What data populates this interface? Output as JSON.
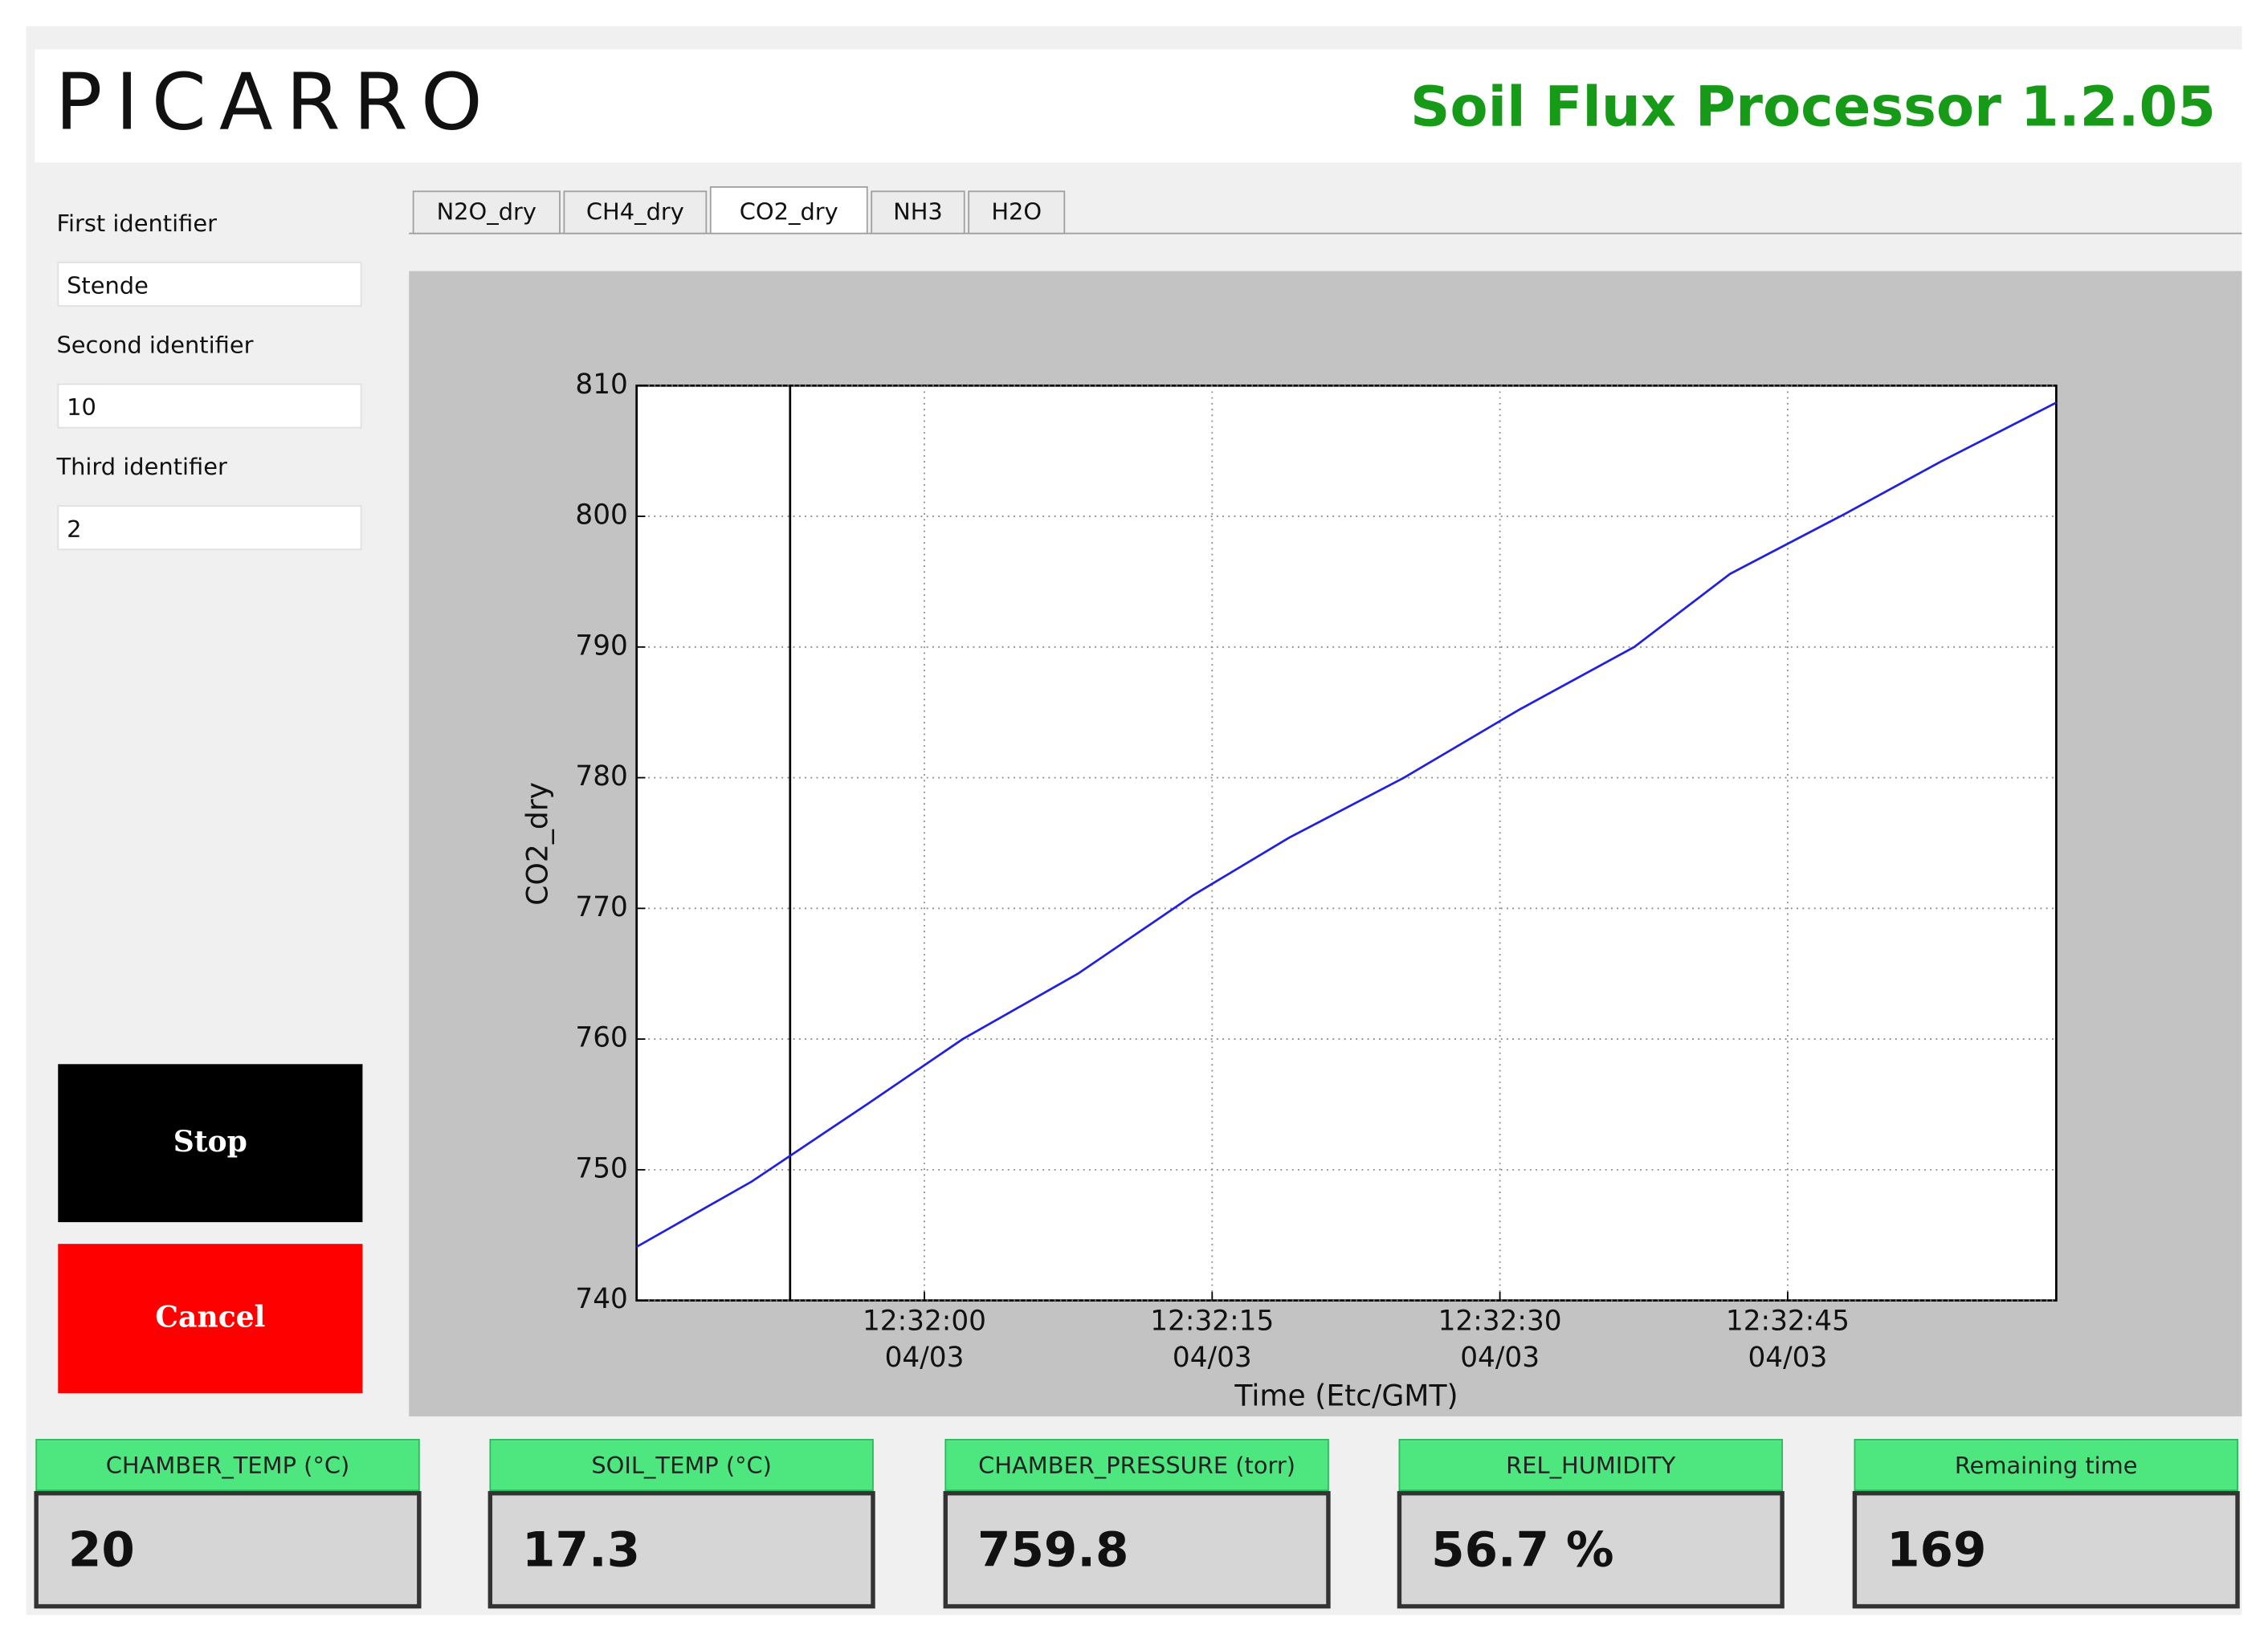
{
  "header": {
    "logo": "PICARRO",
    "title": "Soil Flux Processor 1.2.05"
  },
  "identifiers": [
    {
      "label": "First identifier",
      "value": "Stende"
    },
    {
      "label": "Second identifier",
      "value": "10"
    },
    {
      "label": "Third identifier",
      "value": "2"
    }
  ],
  "buttons": {
    "stop": "Stop",
    "cancel": "Cancel"
  },
  "tabs": [
    "N2O_dry",
    "CH4_dry",
    "CO2_dry",
    "NH3",
    "H2O"
  ],
  "selected_tab": "CO2_dry",
  "chart_data": {
    "type": "line",
    "xlabel": "Time (Etc/GMT)",
    "ylabel": "CO2_dry",
    "x": [
      "12:31:45",
      "12:31:51",
      "12:31:57",
      "12:32:02",
      "12:32:08",
      "12:32:14",
      "12:32:19",
      "12:32:25",
      "12:32:31",
      "12:32:37",
      "12:32:42",
      "12:32:48",
      "12:32:53",
      "12:32:59"
    ],
    "series": [
      {
        "name": "CO2_dry",
        "color": "#2020e0",
        "values": [
          744.1,
          749.1,
          755.0,
          760.0,
          765.0,
          771.0,
          775.4,
          780.0,
          785.2,
          790.0,
          795.6,
          800.2,
          804.2,
          808.7
        ]
      }
    ],
    "xlim": [
      "12:31:45",
      "12:32:59"
    ],
    "xticks": [
      {
        "value": "12:32:00",
        "label": "12:32:00 04/03"
      },
      {
        "value": "12:32:15",
        "label": "12:32:15 04/03"
      },
      {
        "value": "12:32:30",
        "label": "12:32:30 04/03"
      },
      {
        "value": "12:32:45",
        "label": "12:32:45 04/03"
      }
    ],
    "ylim": [
      740,
      810
    ],
    "yticks": [
      740,
      750,
      760,
      770,
      780,
      790,
      800,
      810
    ],
    "marker_x": "12:31:53",
    "grid": true
  },
  "readouts": [
    {
      "label": "CHAMBER_TEMP (°C)",
      "value": "20"
    },
    {
      "label": "SOIL_TEMP (°C)",
      "value": "17.3"
    },
    {
      "label": "CHAMBER_PRESSURE (torr)",
      "value": "759.8"
    },
    {
      "label": "REL_HUMIDITY",
      "value": "56.7 %"
    },
    {
      "label": "Remaining time",
      "value": "169"
    }
  ]
}
